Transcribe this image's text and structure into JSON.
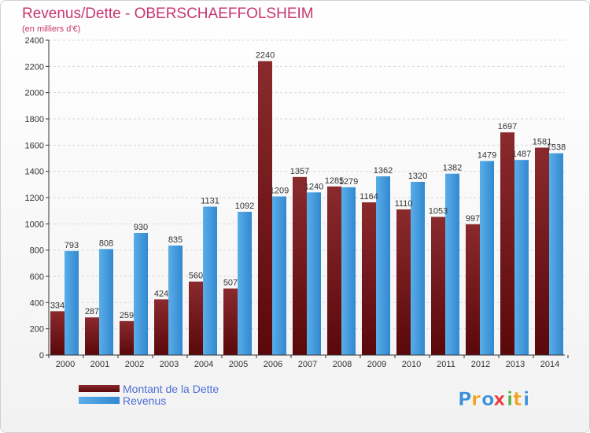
{
  "chart_data": {
    "type": "bar",
    "title": "Revenus/Dette - OBERSCHAEFFOLSHEIM",
    "subtitle": "(en milliers d'€)",
    "categories": [
      "2000",
      "2001",
      "2002",
      "2003",
      "2004",
      "2005",
      "2006",
      "2007",
      "2008",
      "2009",
      "2010",
      "2011",
      "2012",
      "2013",
      "2014"
    ],
    "series": [
      {
        "name": "Montant de la Dette",
        "color": "#6b0f14",
        "values": [
          334,
          287,
          259,
          424,
          560,
          507,
          2240,
          1357,
          1285,
          1164,
          1110,
          1053,
          997,
          1697,
          1581
        ]
      },
      {
        "name": "Revenus",
        "color": "#3f9ae0",
        "values": [
          793,
          808,
          930,
          835,
          1131,
          1092,
          1209,
          1240,
          1279,
          1362,
          1320,
          1382,
          1479,
          1487,
          1538
        ]
      }
    ],
    "ylim": [
      0,
      2400
    ],
    "yticks": [
      0,
      200,
      400,
      600,
      800,
      1000,
      1200,
      1400,
      1600,
      1800,
      2000,
      2200,
      2400
    ],
    "grid": true,
    "legend_position": "bottom-left",
    "title_color": "#c8366e",
    "legend_text_color": "#4f6ed8"
  },
  "logo": {
    "text": "Proxiti",
    "letters": [
      "P",
      "r",
      "o",
      "x",
      "i",
      "t",
      "i"
    ],
    "letter_colors": [
      "#3c8fd8",
      "#f0a020",
      "#3c8fd8",
      "#e83a3a",
      "#5ab04a",
      "#f0a020",
      "#3c8fd8"
    ]
  }
}
